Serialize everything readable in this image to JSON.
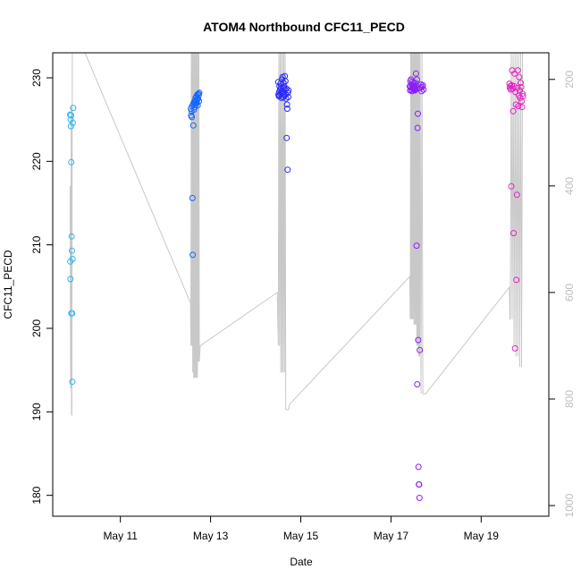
{
  "chart_data": {
    "type": "scatter",
    "title": "ATOM4 Northbound CFC11_PECD",
    "xlabel": "Date",
    "ylabel": "CFC11_PECD",
    "xlim": [
      "2017-05-09 12:00",
      "2017-05-20 12:00"
    ],
    "ylim": [
      177.5,
      233.0
    ],
    "y2lim": [
      1020,
      150
    ],
    "x_ticks": [
      "May 11",
      "May 13",
      "May 15",
      "May 17",
      "May 19"
    ],
    "y_ticks": [
      180,
      190,
      200,
      210,
      220,
      230
    ],
    "y2_ticks": [
      200,
      400,
      600,
      800,
      1000
    ],
    "grid": false,
    "colors": {
      "axis": "#000000",
      "pressure_trace": "#c8c8c8",
      "secondary_axis": "#bdbdbd"
    },
    "series": [
      {
        "color": "#29b6f6",
        "x": [
          "2017-05-09 21:15",
          "2017-05-09 21:20",
          "2017-05-09 21:25",
          "2017-05-09 21:30",
          "2017-05-09 21:40",
          "2017-05-09 21:45",
          "2017-05-09 21:50",
          "2017-05-09 21:55",
          "2017-05-09 22:05",
          "2017-05-09 22:15",
          "2017-05-09 22:20",
          "2017-05-09 22:25",
          "2017-05-09 22:35",
          "2017-05-09 22:40",
          "2017-05-09 22:50"
        ],
        "y": [
          225.6,
          208.0,
          205.9,
          225.0,
          224.2,
          225.5,
          219.9,
          201.8,
          211.0,
          209.3,
          201.8,
          193.6,
          208.3,
          224.6,
          226.4
        ]
      },
      {
        "color": "#1565ff",
        "x": [
          "2017-05-12 13:30",
          "2017-05-12 13:40",
          "2017-05-12 13:50",
          "2017-05-12 14:00",
          "2017-05-12 14:10",
          "2017-05-12 14:20",
          "2017-05-12 14:30",
          "2017-05-12 14:40",
          "2017-05-12 14:50",
          "2017-05-12 15:00",
          "2017-05-12 15:10",
          "2017-05-12 15:20",
          "2017-05-12 15:30",
          "2017-05-12 15:40",
          "2017-05-12 15:50",
          "2017-05-12 16:00",
          "2017-05-12 16:10",
          "2017-05-12 16:20",
          "2017-05-12 16:30",
          "2017-05-12 16:40",
          "2017-05-12 16:50",
          "2017-05-12 17:00",
          "2017-05-12 17:10",
          "2017-05-12 17:20",
          "2017-05-12 17:30",
          "2017-05-12 17:40",
          "2017-05-12 17:50",
          "2017-05-12 18:00"
        ],
        "y": [
          226.3,
          225.5,
          226.0,
          225.3,
          226.6,
          215.6,
          208.8,
          226.8,
          224.3,
          227.0,
          226.2,
          227.1,
          226.5,
          227.3,
          227.0,
          227.6,
          226.8,
          227.2,
          227.8,
          227.0,
          227.4,
          228.0,
          226.7,
          227.5,
          228.1,
          227.9,
          227.2,
          228.2
        ]
      },
      {
        "color": "#2a2aff",
        "x": [
          "2017-05-14 12:00",
          "2017-05-14 12:10",
          "2017-05-14 12:20",
          "2017-05-14 12:30",
          "2017-05-14 12:40",
          "2017-05-14 12:50",
          "2017-05-14 13:00",
          "2017-05-14 13:10",
          "2017-05-14 13:20",
          "2017-05-14 13:30",
          "2017-05-14 13:40",
          "2017-05-14 13:50",
          "2017-05-14 14:00",
          "2017-05-14 14:10",
          "2017-05-14 14:20",
          "2017-05-14 14:30",
          "2017-05-14 14:40",
          "2017-05-14 14:50",
          "2017-05-14 15:00",
          "2017-05-14 15:10",
          "2017-05-14 15:20",
          "2017-05-14 15:30",
          "2017-05-14 15:40",
          "2017-05-14 15:50",
          "2017-05-14 16:00",
          "2017-05-14 16:10",
          "2017-05-14 16:20",
          "2017-05-14 16:30",
          "2017-05-14 16:40",
          "2017-05-14 16:50",
          "2017-05-14 17:00",
          "2017-05-14 17:10",
          "2017-05-14 17:20",
          "2017-05-14 17:30"
        ],
        "y": [
          229.5,
          228.0,
          227.8,
          228.3,
          229.0,
          227.9,
          228.6,
          229.3,
          228.1,
          228.8,
          227.6,
          228.4,
          229.8,
          228.2,
          230.1,
          228.9,
          227.7,
          229.4,
          228.3,
          229.0,
          227.9,
          230.2,
          228.6,
          229.6,
          228.0,
          227.5,
          228.7,
          222.8,
          226.8,
          226.3,
          219.0,
          228.2,
          227.7,
          228.5
        ]
      },
      {
        "color": "#8b1ff5",
        "x": [
          "2017-05-17 10:00",
          "2017-05-17 10:10",
          "2017-05-17 10:20",
          "2017-05-17 10:30",
          "2017-05-17 10:40",
          "2017-05-17 10:50",
          "2017-05-17 11:00",
          "2017-05-17 11:10",
          "2017-05-17 11:20",
          "2017-05-17 11:30",
          "2017-05-17 11:40",
          "2017-05-17 11:50",
          "2017-05-17 12:00",
          "2017-05-17 12:10",
          "2017-05-17 12:20",
          "2017-05-17 12:30",
          "2017-05-17 12:40",
          "2017-05-17 12:50",
          "2017-05-17 13:00",
          "2017-05-17 13:10",
          "2017-05-17 13:20",
          "2017-05-17 13:30",
          "2017-05-17 13:40",
          "2017-05-17 13:50",
          "2017-05-17 14:00",
          "2017-05-17 14:10",
          "2017-05-17 14:20",
          "2017-05-17 14:30",
          "2017-05-17 14:40",
          "2017-05-17 14:50",
          "2017-05-17 15:00",
          "2017-05-17 15:10",
          "2017-05-17 15:20",
          "2017-05-17 15:40",
          "2017-05-17 16:00",
          "2017-05-17 16:20",
          "2017-05-17 16:40",
          "2017-05-17 17:00",
          "2017-05-17 17:20"
        ],
        "y": [
          229.0,
          228.5,
          229.6,
          228.9,
          229.8,
          228.6,
          229.2,
          228.4,
          229.5,
          228.8,
          229.1,
          228.7,
          229.3,
          228.6,
          228.9,
          229.0,
          228.5,
          229.4,
          228.7,
          228.6,
          230.5,
          229.0,
          209.9,
          229.8,
          193.3,
          224.0,
          225.7,
          198.6,
          183.4,
          181.3,
          181.3,
          179.7,
          197.4,
          228.8,
          229.2,
          228.4,
          228.9,
          229.1,
          228.6
        ]
      },
      {
        "color": "#e323c0",
        "x": [
          "2017-05-19 15:00",
          "2017-05-19 15:15",
          "2017-05-19 15:30",
          "2017-05-19 15:45",
          "2017-05-19 16:00",
          "2017-05-19 16:15",
          "2017-05-19 16:30",
          "2017-05-19 16:45",
          "2017-05-19 17:00",
          "2017-05-19 17:15",
          "2017-05-19 17:30",
          "2017-05-19 17:45",
          "2017-05-19 18:00",
          "2017-05-19 18:15",
          "2017-05-19 18:30",
          "2017-05-19 18:45",
          "2017-05-19 19:00",
          "2017-05-19 19:15",
          "2017-05-19 19:30",
          "2017-05-19 19:45",
          "2017-05-19 20:00",
          "2017-05-19 20:15",
          "2017-05-19 20:30",
          "2017-05-19 20:45",
          "2017-05-19 21:00",
          "2017-05-19 21:15",
          "2017-05-19 21:30",
          "2017-05-19 21:45",
          "2017-05-19 22:00",
          "2017-05-19 22:15"
        ],
        "y": [
          229.3,
          228.8,
          229.0,
          228.6,
          217.0,
          229.1,
          230.9,
          228.7,
          226.0,
          211.4,
          229.0,
          230.5,
          197.6,
          228.3,
          226.8,
          205.8,
          216.0,
          228.8,
          230.9,
          226.6,
          227.9,
          230.1,
          228.5,
          227.6,
          229.4,
          228.9,
          227.2,
          226.5,
          228.1,
          227.8
        ]
      }
    ],
    "pressure_trace": {
      "x": [
        "2017-05-09 21:15",
        "2017-05-09 21:30",
        "2017-05-09 21:50",
        "2017-05-09 22:00",
        "2017-05-09 22:10",
        "2017-05-09 22:25",
        "2017-05-09 22:35",
        "2017-05-09 22:50",
        "2017-05-10 04:00",
        "2017-05-12 13:20",
        "2017-05-12 13:30",
        "2017-05-12 13:45",
        "2017-05-12 14:00",
        "2017-05-12 14:15",
        "2017-05-12 14:30",
        "2017-05-12 14:45",
        "2017-05-12 15:00",
        "2017-05-12 15:15",
        "2017-05-12 15:30",
        "2017-05-12 15:45",
        "2017-05-12 16:00",
        "2017-05-12 16:15",
        "2017-05-12 16:30",
        "2017-05-12 16:45",
        "2017-05-12 17:00",
        "2017-05-12 17:15",
        "2017-05-12 17:30",
        "2017-05-12 17:45",
        "2017-05-12 18:00",
        "2017-05-12 18:30",
        "2017-05-14 11:30",
        "2017-05-14 12:00",
        "2017-05-14 12:20",
        "2017-05-14 12:40",
        "2017-05-14 13:00",
        "2017-05-14 13:20",
        "2017-05-14 13:40",
        "2017-05-14 14:00",
        "2017-05-14 14:20",
        "2017-05-14 14:40",
        "2017-05-14 15:00",
        "2017-05-14 15:20",
        "2017-05-14 15:40",
        "2017-05-14 16:00",
        "2017-05-14 16:20",
        "2017-05-14 16:40",
        "2017-05-14 17:00",
        "2017-05-14 17:30",
        "2017-05-14 18:00",
        "2017-05-17 10:00",
        "2017-05-17 10:15",
        "2017-05-17 10:30",
        "2017-05-17 10:45",
        "2017-05-17 11:00",
        "2017-05-17 11:15",
        "2017-05-17 11:30",
        "2017-05-17 11:45",
        "2017-05-17 12:00",
        "2017-05-17 12:15",
        "2017-05-17 12:30",
        "2017-05-17 12:45",
        "2017-05-17 13:00",
        "2017-05-17 13:15",
        "2017-05-17 13:30",
        "2017-05-17 13:45",
        "2017-05-17 14:00",
        "2017-05-17 14:15",
        "2017-05-17 14:30",
        "2017-05-17 14:45",
        "2017-05-17 15:00",
        "2017-05-17 15:15",
        "2017-05-17 15:30",
        "2017-05-17 16:00",
        "2017-05-17 16:30",
        "2017-05-17 17:00",
        "2017-05-17 18:30",
        "2017-05-19 15:00",
        "2017-05-19 15:15",
        "2017-05-19 15:30",
        "2017-05-19 16:00",
        "2017-05-19 16:30",
        "2017-05-19 17:00",
        "2017-05-19 17:30",
        "2017-05-19 18:00",
        "2017-05-19 18:30",
        "2017-05-19 19:00",
        "2017-05-19 19:30",
        "2017-05-19 20:00",
        "2017-05-19 20:30",
        "2017-05-19 21:00",
        "2017-05-19 21:30",
        "2017-05-19 22:00"
      ],
      "p": [
        400,
        780,
        250,
        830,
        830,
        140,
        140,
        140,
        140,
        620,
        700,
        150,
        700,
        150,
        750,
        150,
        760,
        150,
        760,
        150,
        760,
        150,
        760,
        150,
        760,
        150,
        730,
        150,
        730,
        700,
        600,
        700,
        150,
        700,
        150,
        750,
        150,
        750,
        150,
        750,
        150,
        750,
        150,
        820,
        820,
        820,
        820,
        820,
        810,
        570,
        650,
        150,
        650,
        150,
        650,
        150,
        650,
        150,
        660,
        150,
        660,
        150,
        660,
        150,
        700,
        150,
        700,
        150,
        720,
        150,
        720,
        150,
        790,
        150,
        790,
        790,
        590,
        650,
        650,
        150,
        650,
        150,
        700,
        150,
        720,
        150,
        720,
        150,
        740,
        150,
        740,
        150
      ]
    }
  }
}
